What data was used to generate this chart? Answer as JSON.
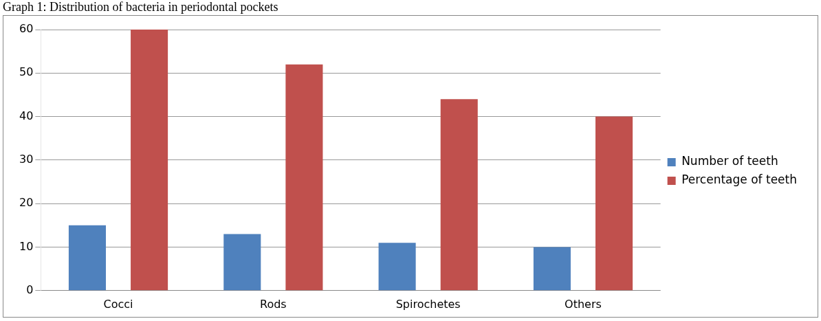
{
  "chart_data": {
    "type": "bar",
    "title": "Graph 1: Distribution of bacteria in periodontal pockets",
    "categories": [
      "Cocci",
      "Rods",
      "Spirochetes",
      "Others"
    ],
    "series": [
      {
        "name": "Number of teeth",
        "color": "#4f81bd",
        "values": [
          15,
          13,
          11,
          10
        ]
      },
      {
        "name": "Percentage of teeth",
        "color": "#c0504d",
        "values": [
          60,
          52,
          44,
          40
        ]
      }
    ],
    "ylim": [
      0,
      60
    ],
    "yticks": [
      0,
      10,
      20,
      30,
      40,
      50,
      60
    ],
    "grid": "y",
    "legend": "right"
  }
}
